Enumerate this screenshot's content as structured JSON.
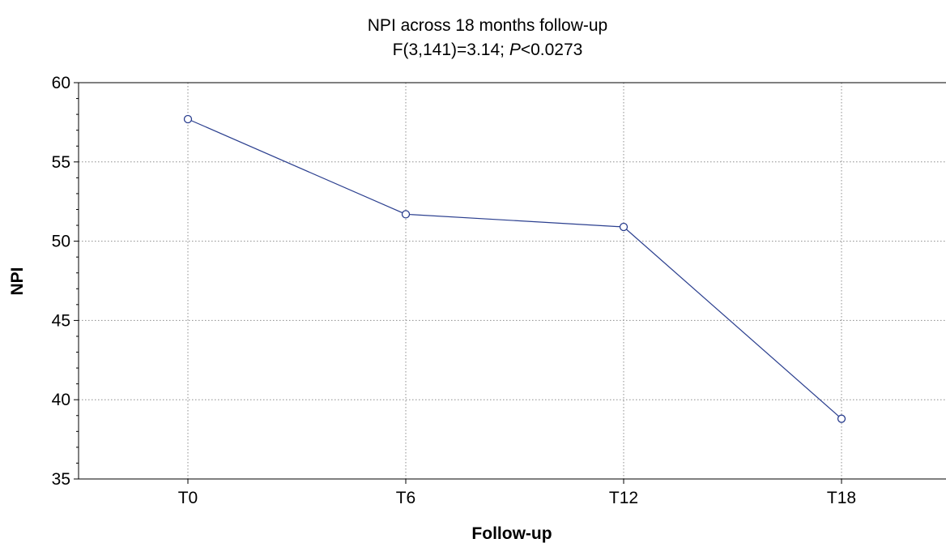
{
  "chart_data": {
    "type": "line",
    "title": "NPI across 18 months follow-up",
    "subtitle_parts": [
      {
        "text": "F(3,141)=3.14; ",
        "italic": false
      },
      {
        "text": "P",
        "italic": true
      },
      {
        "text": "<0.0273",
        "italic": false
      }
    ],
    "xlabel": "Follow-up",
    "ylabel": "NPI",
    "categories": [
      "T0",
      "T6",
      "T12",
      "T18"
    ],
    "series": [
      {
        "values": [
          57.7,
          51.7,
          50.9,
          38.8
        ],
        "color": "#2b3f8f",
        "marker": "open-circle"
      }
    ],
    "ylim": [
      35,
      60
    ],
    "yticks": [
      35,
      40,
      45,
      50,
      55,
      60
    ],
    "grid": true,
    "grid_style": "dotted",
    "legend": "none"
  }
}
